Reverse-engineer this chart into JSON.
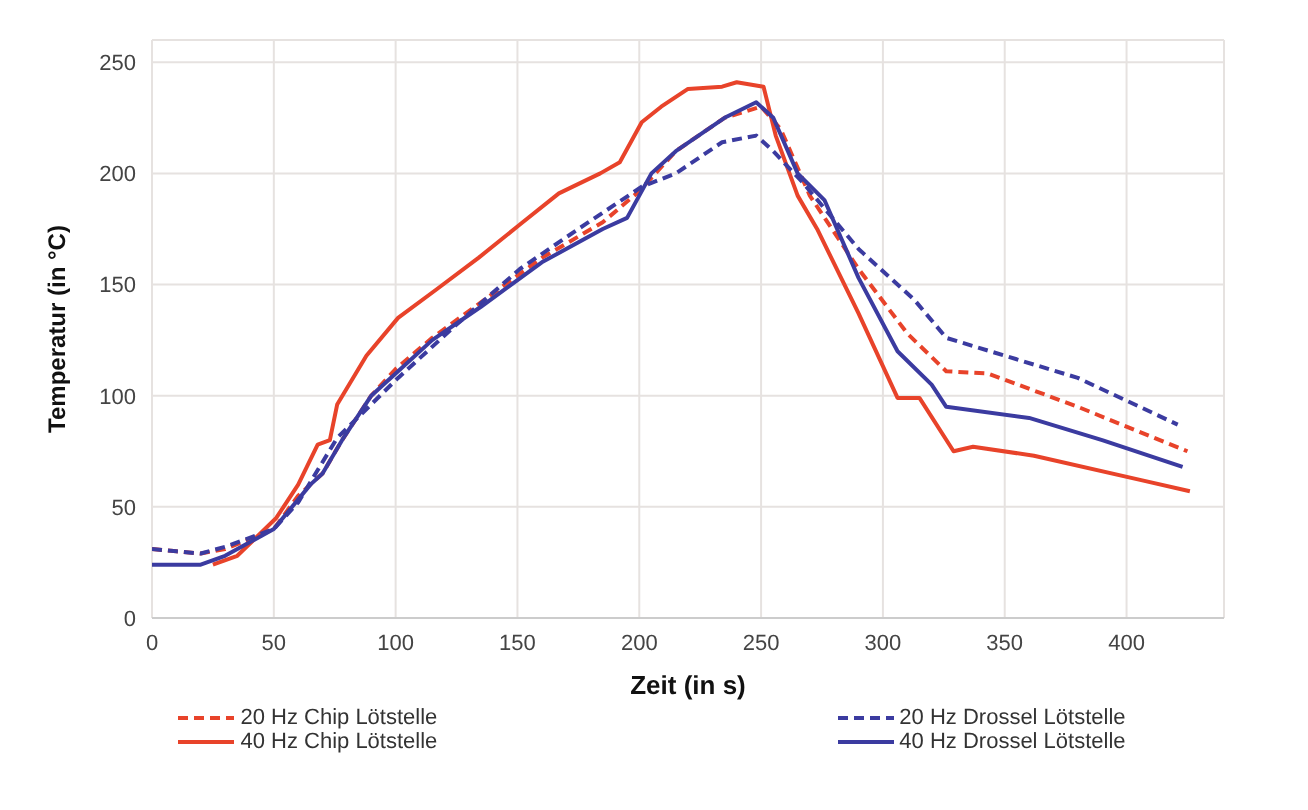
{
  "chart_data": {
    "type": "line",
    "xlabel": "Zeit (in s)",
    "ylabel": "Temperatur (in °C)",
    "xlim": [
      0,
      440
    ],
    "xticks": [
      0,
      50,
      100,
      150,
      200,
      250,
      300,
      350,
      400
    ],
    "ylim": [
      0,
      260
    ],
    "yticks": [
      0,
      50,
      100,
      150,
      200,
      250
    ],
    "grid": true,
    "legend": "bottom",
    "marker": "none",
    "series": [
      {
        "name": "20 Hz Chip Lötstelle",
        "color": "#e8432a",
        "line_style": "dashed",
        "x": [
          0,
          10,
          20,
          30,
          50,
          60,
          70,
          78,
          90,
          100,
          115,
          135,
          160,
          185,
          200,
          215,
          235,
          250,
          258,
          270,
          290,
          310,
          326,
          343,
          380,
          425
        ],
        "values": [
          31,
          30,
          29,
          31,
          40,
          55,
          65,
          80,
          100,
          112,
          126,
          142,
          162,
          178,
          192,
          210,
          225,
          230,
          220,
          190,
          157,
          128,
          111,
          110,
          95,
          75
        ]
      },
      {
        "name": "40 Hz Chip Lötstelle",
        "color": "#e8432a",
        "line_style": "solid",
        "x": [
          25,
          35,
          51,
          60,
          68,
          73,
          76,
          88,
          101,
          117,
          134,
          151,
          167,
          184,
          192,
          201,
          209,
          220,
          234,
          240,
          251,
          256,
          265,
          273,
          290,
          306,
          315,
          329,
          337,
          362,
          406,
          426
        ],
        "values": [
          24,
          28,
          45,
          60,
          78,
          80,
          96,
          118,
          135,
          148,
          162,
          177,
          191,
          200,
          205,
          223,
          230,
          238,
          239,
          241,
          239,
          217,
          190,
          175,
          137,
          99,
          99,
          75,
          77,
          73,
          62,
          57
        ]
      },
      {
        "name": "20 Hz Drossel Lötstelle",
        "color": "#3b3ba0",
        "line_style": "dashed",
        "x": [
          0,
          10,
          20,
          30,
          50,
          60,
          76,
          101,
          125,
          151,
          175,
          201,
          215,
          234,
          248,
          255,
          267,
          290,
          313,
          326,
          380,
          421
        ],
        "values": [
          31,
          30,
          29,
          32,
          40,
          52,
          81,
          108,
          132,
          157,
          175,
          194,
          200,
          214,
          217,
          210,
          196,
          166,
          143,
          126,
          108,
          87
        ]
      },
      {
        "name": "40 Hz Drossel Lötstelle",
        "color": "#3b3ba0",
        "line_style": "solid",
        "x": [
          0,
          10,
          20,
          30,
          50,
          65,
          70,
          78,
          90,
          100,
          115,
          135,
          160,
          185,
          195,
          205,
          215,
          235,
          248,
          255,
          265,
          276,
          290,
          306,
          320,
          326,
          360,
          390,
          423
        ],
        "values": [
          24,
          24,
          24,
          28,
          40,
          60,
          65,
          80,
          100,
          110,
          125,
          140,
          160,
          175,
          180,
          200,
          210,
          225,
          232,
          225,
          200,
          188,
          153,
          120,
          105,
          95,
          90,
          80,
          68
        ]
      }
    ]
  }
}
